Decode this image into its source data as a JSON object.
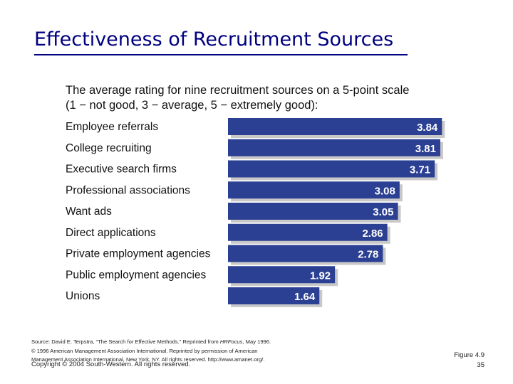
{
  "slide": {
    "title": "Effectiveness of Recruitment Sources",
    "subtitle_line1": "The average rating for nine recruitment sources on a 5-point scale",
    "subtitle_line2": "(1 − not good, 3 − average, 5 − extremely good):",
    "source_prefix": "Source: David E. Terpstra, “The Search for Effective Methods.” Reprinted from ",
    "source_pub": "HRFocus",
    "source_suffix": ", May 1996.",
    "source_line2": "© 1996 American Management Association International. Reprinted by permission of American",
    "source_line3": "Management Association International, New York, NY. All rights reserved. http://www.amanet.org/.",
    "copyright": "Copyright © 2004 South-Western. All rights reserved.",
    "figure": "Figure 4.9",
    "page": "35"
  },
  "colors": {
    "title": "#000080",
    "bar": "#2b3f93",
    "bar_shadow": "#c8c8c8",
    "value_text": "#ffffff"
  },
  "chart_data": {
    "type": "bar",
    "orientation": "horizontal",
    "categories": [
      "Employee referrals",
      "College recruiting",
      "Executive search firms",
      "Professional associations",
      "Want ads",
      "Direct applications",
      "Private employment agencies",
      "Public employment agencies",
      "Unions"
    ],
    "values": [
      3.84,
      3.81,
      3.71,
      3.08,
      3.05,
      2.86,
      2.78,
      1.92,
      1.64
    ],
    "value_labels": [
      "3.84",
      "3.81",
      "3.71",
      "3.08",
      "3.05",
      "2.86",
      "2.78",
      "1.92",
      "1.64"
    ],
    "xlim": [
      0,
      5
    ],
    "grid": false,
    "legend": "none"
  }
}
